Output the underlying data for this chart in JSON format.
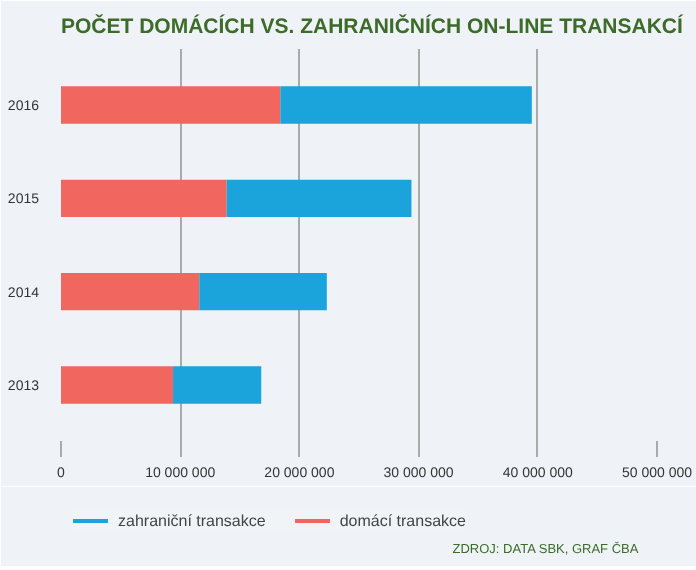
{
  "chart_data": {
    "type": "bar",
    "orientation": "horizontal",
    "stacked": true,
    "title": "POČET DOMÁCÍCH VS. ZAHRANIČNÍCH ON-LINE TRANSAKCÍ",
    "categories": [
      "2016",
      "2015",
      "2014",
      "2013"
    ],
    "series": [
      {
        "name": "domácí transakce",
        "color": "#f26660",
        "values": [
          18400000,
          13900000,
          11600000,
          9400000
        ]
      },
      {
        "name": "zahraniční transakce",
        "color": "#1ba3dc",
        "values": [
          21100000,
          15500000,
          10700000,
          7400000
        ]
      }
    ],
    "xlim": [
      0,
      50000000
    ],
    "xticks": [
      0,
      {
        "value": 10000000,
        "label": "10 000 000"
      },
      {
        "value": 20000000,
        "label": "20 000 000"
      },
      {
        "value": 30000000,
        "label": "30 000 000"
      },
      {
        "value": 40000000,
        "label": "40 000 000"
      },
      {
        "value": 50000000,
        "label": "50 000 000"
      }
    ],
    "grid": "x",
    "legend": "bottom left",
    "annotations": [
      "ZDROJ: DATA SBK, GRAF ČBA"
    ]
  }
}
